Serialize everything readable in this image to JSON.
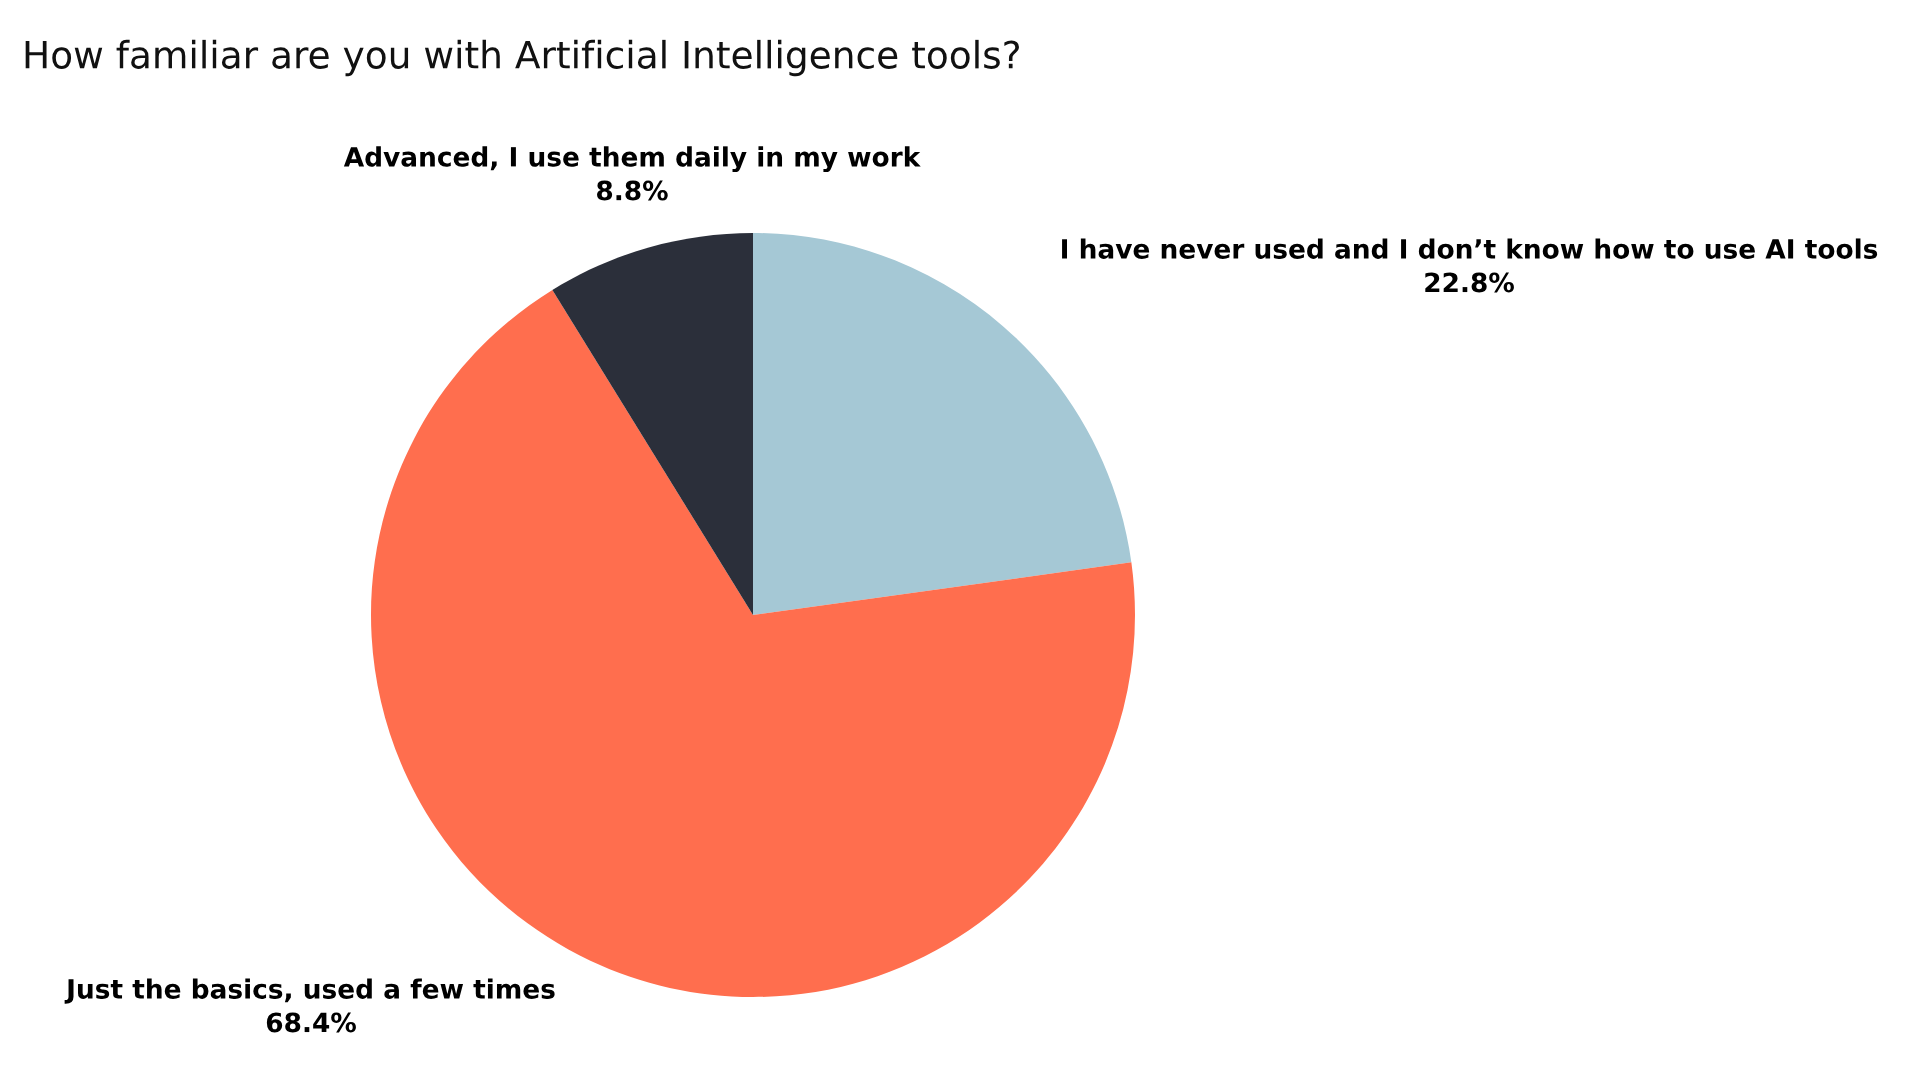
{
  "chart_data": {
    "type": "pie",
    "title": "How familiar are you with Artificial Intelligence tools?",
    "categories": [
      "I have never used and I don’t know how to use AI tools",
      "Just the basics, used a few times",
      "Advanced, I use them daily in my work"
    ],
    "values": [
      22.8,
      68.4,
      8.8
    ],
    "colors": [
      "#a5c8d5",
      "#ff6e4e",
      "#2b2f3a"
    ],
    "value_labels": [
      "22.8%",
      "68.4%",
      "8.8%"
    ],
    "legend": false
  }
}
